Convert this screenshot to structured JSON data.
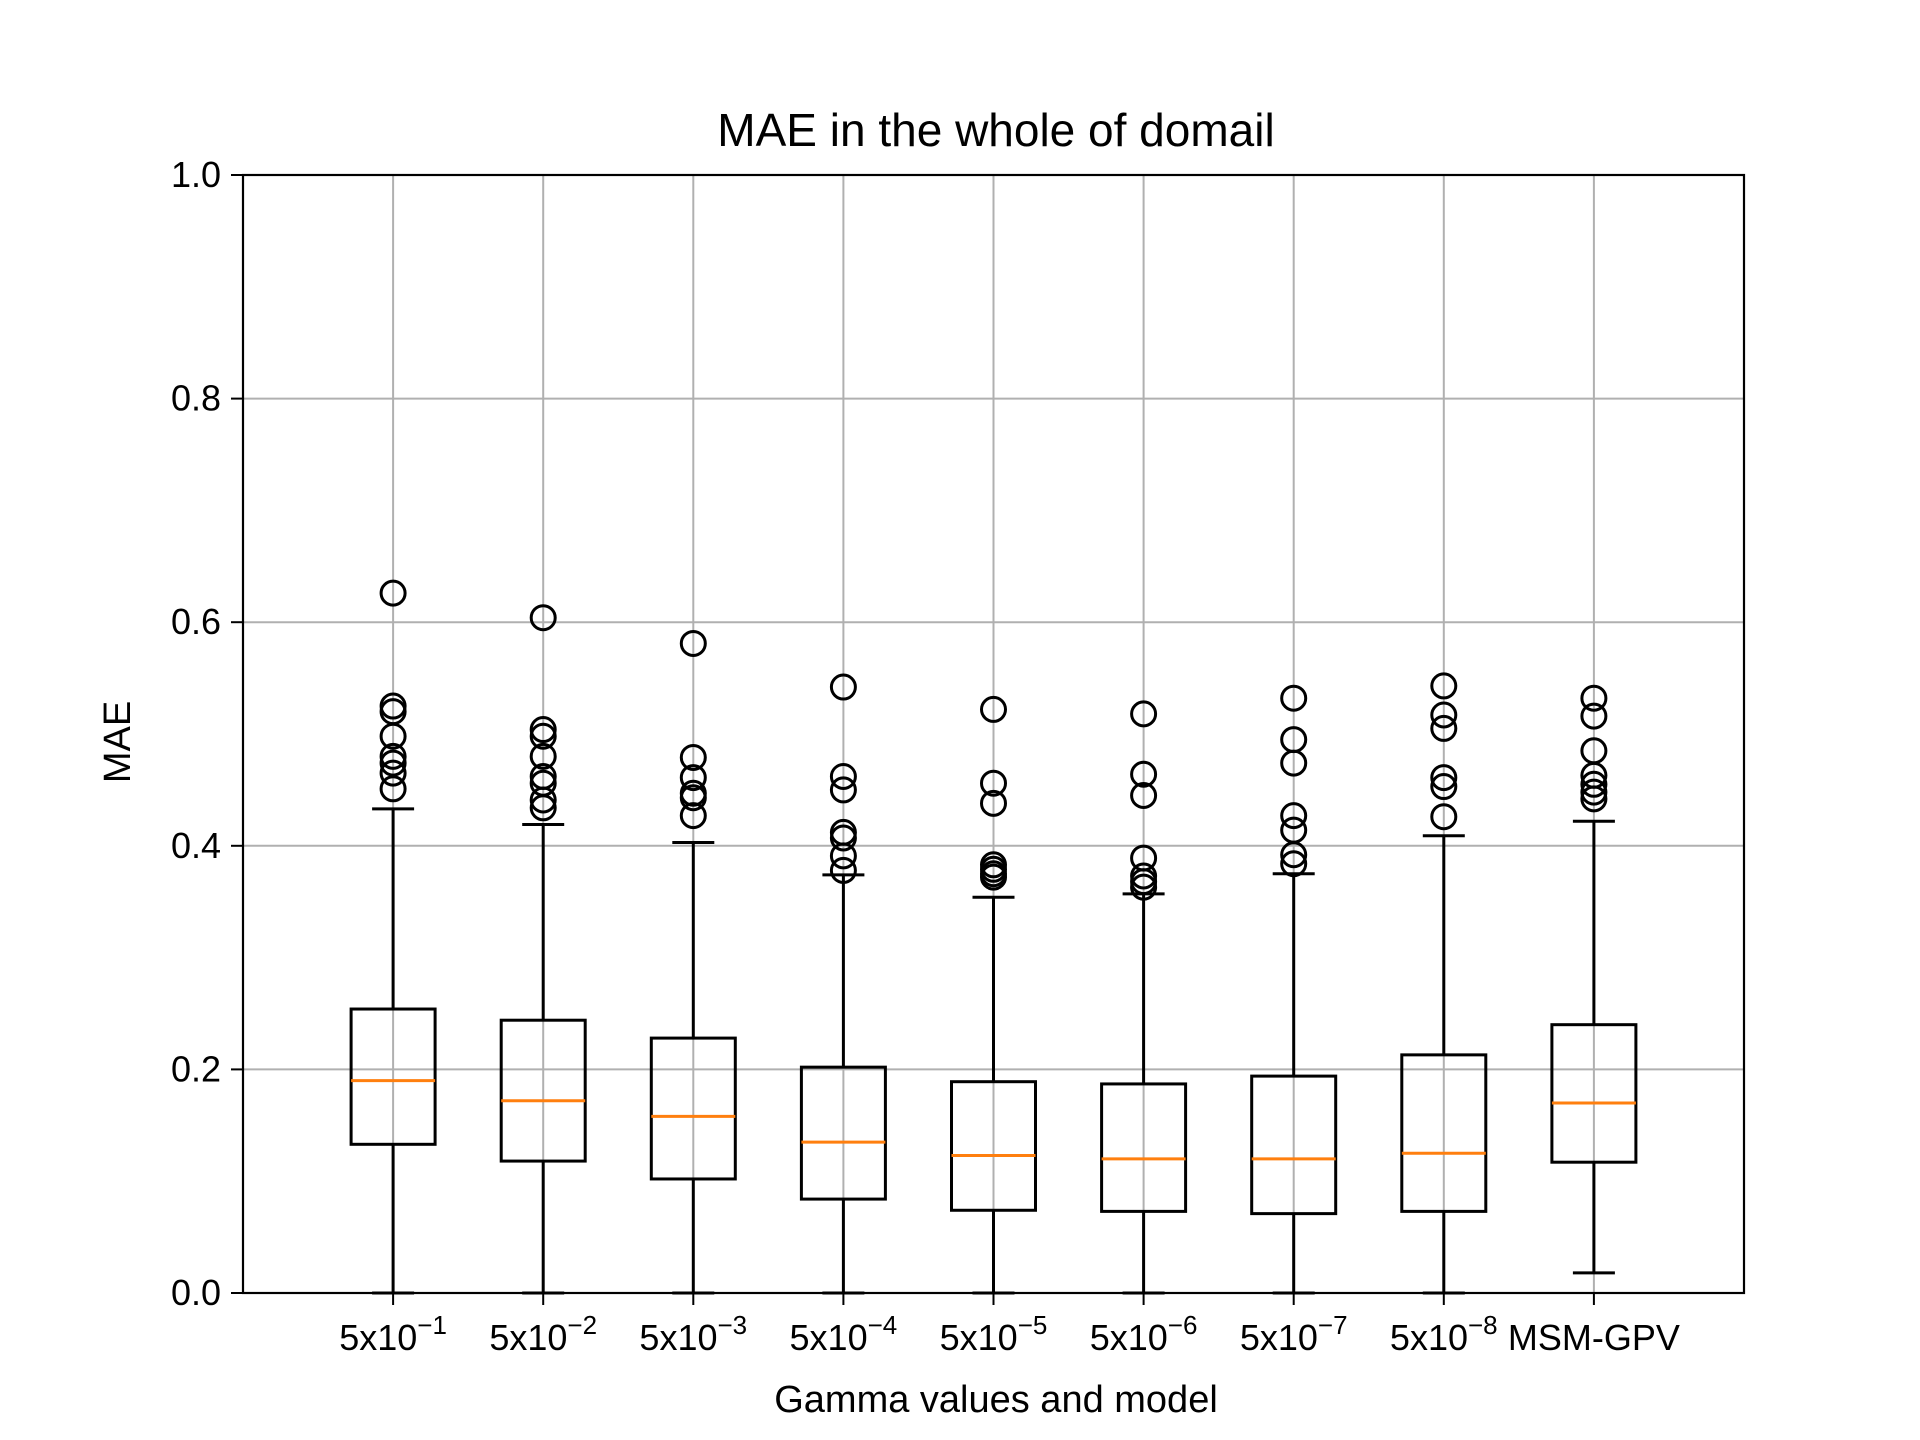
{
  "chart_data": {
    "type": "boxplot",
    "title": "MAE in the whole of domail",
    "xlabel": "Gamma values and model",
    "ylabel": "MAE",
    "ylim": [
      0.0,
      1.0
    ],
    "yticks": [
      "0.0",
      "0.2",
      "0.4",
      "0.6",
      "0.8",
      "1.0"
    ],
    "grid": true,
    "colors": {
      "box": "#000000",
      "median": "#ff7f0e",
      "grid": "#b0b0b0"
    },
    "categories": [
      {
        "base": "5x10",
        "exp": "−1"
      },
      {
        "base": "5x10",
        "exp": "−2"
      },
      {
        "base": "5x10",
        "exp": "−3"
      },
      {
        "base": "5x10",
        "exp": "−4"
      },
      {
        "base": "5x10",
        "exp": "−5"
      },
      {
        "base": "5x10",
        "exp": "−6"
      },
      {
        "base": "5x10",
        "exp": "−7"
      },
      {
        "base": "5x10",
        "exp": "−8"
      },
      {
        "base": "MSM-GPV",
        "exp": ""
      }
    ],
    "boxes": [
      {
        "whislo": 0.0,
        "q1": 0.133,
        "med": 0.19,
        "q3": 0.254,
        "whishi": 0.433,
        "fliers": [
          0.626,
          0.525,
          0.52,
          0.498,
          0.48,
          0.474,
          0.465,
          0.451
        ]
      },
      {
        "whislo": 0.0,
        "q1": 0.118,
        "med": 0.172,
        "q3": 0.244,
        "whishi": 0.419,
        "fliers": [
          0.604,
          0.504,
          0.498,
          0.48,
          0.462,
          0.456,
          0.441,
          0.434
        ]
      },
      {
        "whislo": 0.0,
        "q1": 0.102,
        "med": 0.158,
        "q3": 0.228,
        "whishi": 0.403,
        "fliers": [
          0.581,
          0.479,
          0.461,
          0.447,
          0.443,
          0.427
        ]
      },
      {
        "whislo": 0.0,
        "q1": 0.084,
        "med": 0.135,
        "q3": 0.202,
        "whishi": 0.374,
        "fliers": [
          0.542,
          0.462,
          0.45,
          0.412,
          0.407,
          0.391,
          0.378
        ]
      },
      {
        "whislo": 0.0,
        "q1": 0.074,
        "med": 0.123,
        "q3": 0.189,
        "whishi": 0.354,
        "fliers": [
          0.522,
          0.456,
          0.438,
          0.383,
          0.379,
          0.375,
          0.372
        ]
      },
      {
        "whislo": 0.0,
        "q1": 0.073,
        "med": 0.12,
        "q3": 0.187,
        "whishi": 0.357,
        "fliers": [
          0.518,
          0.464,
          0.445,
          0.389,
          0.373,
          0.368,
          0.363
        ]
      },
      {
        "whislo": 0.0,
        "q1": 0.071,
        "med": 0.12,
        "q3": 0.194,
        "whishi": 0.375,
        "fliers": [
          0.532,
          0.495,
          0.474,
          0.427,
          0.414,
          0.392,
          0.384
        ]
      },
      {
        "whislo": 0.0,
        "q1": 0.073,
        "med": 0.125,
        "q3": 0.213,
        "whishi": 0.409,
        "fliers": [
          0.543,
          0.517,
          0.505,
          0.461,
          0.453,
          0.426
        ]
      },
      {
        "whislo": 0.018,
        "q1": 0.117,
        "med": 0.17,
        "q3": 0.24,
        "whishi": 0.422,
        "fliers": [
          0.532,
          0.516,
          0.485,
          0.463,
          0.455,
          0.448,
          0.442
        ]
      }
    ]
  }
}
